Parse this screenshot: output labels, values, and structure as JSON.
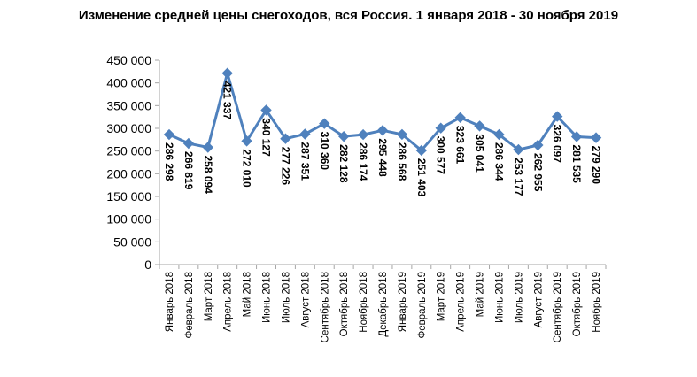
{
  "chart_data": {
    "type": "line",
    "title": "Изменение средней цены снегоходов, вся Россия. 1 января 2018 - 30 ноября 2019",
    "xlabel": "",
    "ylabel": "",
    "ylim": [
      0,
      450000
    ],
    "y_ticks": [
      "0",
      "50 000",
      "100 000",
      "150 000",
      "200 000",
      "250 000",
      "300 000",
      "350 000",
      "400 000",
      "450 000"
    ],
    "grid": false,
    "legend": "none",
    "colors": {
      "line": "#4f81bd",
      "marker": "#4f81bd",
      "axis": "#a6a6a6"
    },
    "categories": [
      "Январь 2018",
      "Февраль 2018",
      "Март 2018",
      "Апрель 2018",
      "Май 2018",
      "Июнь 2018",
      "Июль 2018",
      "Август 2018",
      "Сентябрь 2018",
      "Октябрь 2018",
      "Ноябрь 2018",
      "Декабрь 2018",
      "Январь 2019",
      "Февраль 2019",
      "Март 2019",
      "Апрель 2019",
      "Май 2019",
      "Июнь 2019",
      "Июль 2019",
      "Август 2019",
      "Сентябрь 2019",
      "Октябрь 2019",
      "Ноябрь 2019"
    ],
    "series": [
      {
        "values": [
          286298,
          266819,
          258094,
          421337,
          272010,
          340127,
          277226,
          287351,
          310360,
          282128,
          286174,
          295448,
          286568,
          251403,
          300577,
          323661,
          305041,
          286344,
          253177,
          262955,
          326097,
          281535,
          279290
        ],
        "data_labels": [
          "286 298",
          "266 819",
          "258 094",
          "421 337",
          "272 010",
          "340 127",
          "277 226",
          "287 351",
          "310 360",
          "282 128",
          "286 174",
          "295 448",
          "286 568",
          "251 403",
          "300 577",
          "323 661",
          "305 041",
          "286 344",
          "253 177",
          "262 955",
          "326 097",
          "281 535",
          "279 290"
        ]
      }
    ]
  }
}
